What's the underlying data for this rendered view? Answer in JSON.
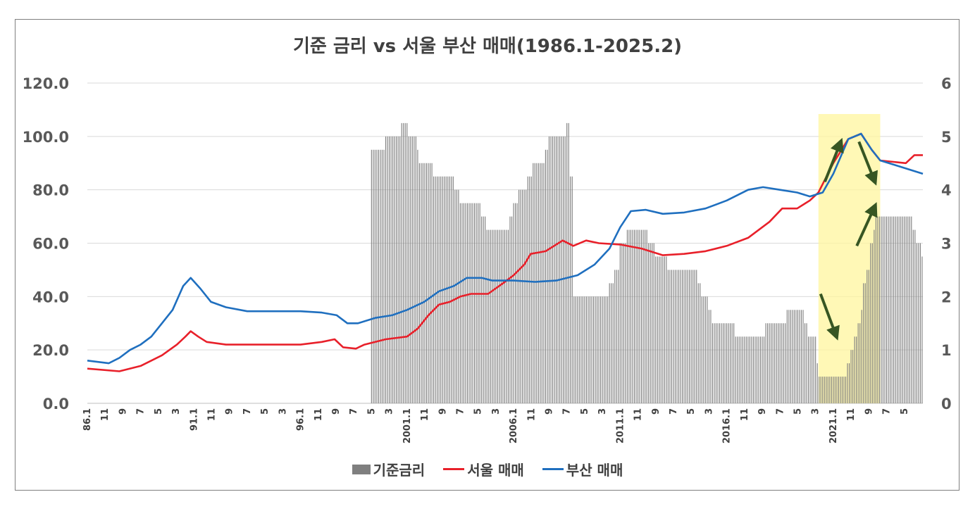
{
  "chart_data": {
    "type": "bar",
    "title": "기준 금리 vs 서울 부산 매매(1986.1-2025.2)",
    "colors": {
      "rate": "#7f7f7f",
      "seoul": "#e8202a",
      "busan": "#1f6fbf",
      "highlight": "#fff59d",
      "arrow": "#375623"
    },
    "left_axis": {
      "ticks": [
        "0.0",
        "20.0",
        "40.0",
        "60.0",
        "80.0",
        "100.0",
        "120.0"
      ],
      "ylim": [
        0,
        120
      ]
    },
    "right_axis": {
      "ticks": [
        "0",
        "1",
        "2",
        "3",
        "4",
        "5",
        "6"
      ],
      "ylim": [
        0,
        6
      ]
    },
    "x_tick_labels": [
      "86.1",
      "11",
      "9",
      "7",
      "5",
      "3",
      "91.1",
      "11",
      "9",
      "7",
      "5",
      "3",
      "96.1",
      "11",
      "9",
      "7",
      "5",
      "3",
      "2001.1",
      "11",
      "9",
      "7",
      "5",
      "3",
      "2006.1",
      "11",
      "9",
      "7",
      "5",
      "3",
      "2011.1",
      "11",
      "9",
      "7",
      "5",
      "3",
      "2016.1",
      "11",
      "9",
      "7",
      "5",
      "3",
      "2021.1",
      "11",
      "9",
      "7",
      "5"
    ],
    "grid": true,
    "legend_position": "bottom",
    "highlight_range": [
      "2020.3",
      "2023.2"
    ],
    "series": [
      {
        "name": "기준금리",
        "axis": "right",
        "type": "bar",
        "points": [
          [
            1999.33,
            4.75
          ],
          [
            2000.0,
            5.0
          ],
          [
            2000.75,
            5.25
          ],
          [
            2001.0,
            5.25
          ],
          [
            2001.08,
            5.0
          ],
          [
            2001.5,
            4.75
          ],
          [
            2001.58,
            4.5
          ],
          [
            2002.25,
            4.25
          ],
          [
            2003.0,
            4.25
          ],
          [
            2003.25,
            4.0
          ],
          [
            2003.5,
            3.75
          ],
          [
            2004.5,
            3.5
          ],
          [
            2004.75,
            3.25
          ],
          [
            2005.83,
            3.5
          ],
          [
            2006.0,
            3.75
          ],
          [
            2006.2,
            4.0
          ],
          [
            2006.6,
            4.25
          ],
          [
            2006.9,
            4.5
          ],
          [
            2007.5,
            4.75
          ],
          [
            2007.6,
            5.0
          ],
          [
            2008.0,
            5.0
          ],
          [
            2008.5,
            5.25
          ],
          [
            2008.6,
            4.25
          ],
          [
            2008.8,
            2.0
          ],
          [
            2010.5,
            2.25
          ],
          [
            2010.75,
            2.5
          ],
          [
            2010.95,
            3.0
          ],
          [
            2011.3,
            3.25
          ],
          [
            2012.0,
            3.25
          ],
          [
            2012.3,
            3.0
          ],
          [
            2012.6,
            2.75
          ],
          [
            2013.0,
            2.75
          ],
          [
            2013.2,
            2.5
          ],
          [
            2014.6,
            2.25
          ],
          [
            2014.8,
            2.0
          ],
          [
            2015.1,
            1.75
          ],
          [
            2015.3,
            1.5
          ],
          [
            2016.4,
            1.25
          ],
          [
            2017.6,
            1.25
          ],
          [
            2017.8,
            1.5
          ],
          [
            2018.7,
            1.5
          ],
          [
            2018.8,
            1.75
          ],
          [
            2019.5,
            1.75
          ],
          [
            2019.6,
            1.5
          ],
          [
            2019.8,
            1.25
          ],
          [
            2020.2,
            0.75
          ],
          [
            2020.3,
            0.5
          ],
          [
            2021.5,
            0.5
          ],
          [
            2021.6,
            0.75
          ],
          [
            2021.8,
            1.0
          ],
          [
            2022.0,
            1.25
          ],
          [
            2022.1,
            1.5
          ],
          [
            2022.3,
            1.75
          ],
          [
            2022.4,
            2.25
          ],
          [
            2022.55,
            2.5
          ],
          [
            2022.7,
            3.0
          ],
          [
            2022.9,
            3.25
          ],
          [
            2023.0,
            3.5
          ],
          [
            2024.6,
            3.5
          ],
          [
            2024.7,
            3.25
          ],
          [
            2024.85,
            3.0
          ],
          [
            2025.1,
            2.75
          ]
        ]
      },
      {
        "name": "서울 매매",
        "axis": "left",
        "type": "line",
        "points": [
          [
            1986.0,
            13
          ],
          [
            1987.5,
            12
          ],
          [
            1988.5,
            14
          ],
          [
            1989.5,
            18
          ],
          [
            1990.2,
            22
          ],
          [
            1990.6,
            25
          ],
          [
            1990.85,
            27
          ],
          [
            1991.2,
            25
          ],
          [
            1991.6,
            23
          ],
          [
            1992.5,
            22
          ],
          [
            1993,
            22
          ],
          [
            1995,
            22
          ],
          [
            1996,
            22
          ],
          [
            1997,
            23
          ],
          [
            1997.6,
            24
          ],
          [
            1998.0,
            21
          ],
          [
            1998.6,
            20.5
          ],
          [
            1999,
            22
          ],
          [
            2000,
            24
          ],
          [
            2001,
            25
          ],
          [
            2001.5,
            28
          ],
          [
            2002,
            33
          ],
          [
            2002.5,
            37
          ],
          [
            2003,
            38
          ],
          [
            2003.5,
            40
          ],
          [
            2004,
            41
          ],
          [
            2004.8,
            41
          ],
          [
            2005.5,
            45
          ],
          [
            2006.0,
            48
          ],
          [
            2006.5,
            52
          ],
          [
            2006.8,
            56
          ],
          [
            2007.5,
            57
          ],
          [
            2008.3,
            61
          ],
          [
            2008.8,
            59
          ],
          [
            2009.4,
            61
          ],
          [
            2010,
            60
          ],
          [
            2011,
            59.5
          ],
          [
            2012,
            58
          ],
          [
            2013,
            55.5
          ],
          [
            2014,
            56
          ],
          [
            2015,
            57
          ],
          [
            2016,
            59
          ],
          [
            2017,
            62
          ],
          [
            2018,
            68
          ],
          [
            2018.6,
            73
          ],
          [
            2019.3,
            73
          ],
          [
            2019.9,
            76
          ],
          [
            2020.3,
            79
          ],
          [
            2021,
            90
          ],
          [
            2021.7,
            99
          ],
          [
            2022.3,
            101
          ],
          [
            2022.8,
            95
          ],
          [
            2023.2,
            91
          ],
          [
            2024.4,
            90
          ],
          [
            2024.8,
            93
          ],
          [
            2025.2,
            93
          ]
        ]
      },
      {
        "name": "부산 매매",
        "axis": "left",
        "type": "line",
        "points": [
          [
            1986.0,
            16
          ],
          [
            1987.0,
            15
          ],
          [
            1987.5,
            17
          ],
          [
            1988.0,
            20
          ],
          [
            1988.5,
            22
          ],
          [
            1989.0,
            25
          ],
          [
            1989.5,
            30
          ],
          [
            1990.0,
            35
          ],
          [
            1990.5,
            44
          ],
          [
            1990.85,
            47
          ],
          [
            1991.3,
            43
          ],
          [
            1991.8,
            38
          ],
          [
            1992.5,
            36
          ],
          [
            1993.5,
            34.5
          ],
          [
            1995,
            34.5
          ],
          [
            1996,
            34.5
          ],
          [
            1997,
            34
          ],
          [
            1997.7,
            33
          ],
          [
            1998.2,
            30
          ],
          [
            1998.7,
            30
          ],
          [
            1999.5,
            32
          ],
          [
            2000.3,
            33
          ],
          [
            2001,
            35
          ],
          [
            2001.8,
            38
          ],
          [
            2002.5,
            42
          ],
          [
            2003.2,
            44
          ],
          [
            2003.8,
            47
          ],
          [
            2004.5,
            47
          ],
          [
            2005,
            46
          ],
          [
            2006,
            46
          ],
          [
            2007,
            45.5
          ],
          [
            2008,
            46
          ],
          [
            2009,
            48
          ],
          [
            2009.8,
            52
          ],
          [
            2010.5,
            58
          ],
          [
            2011.0,
            66
          ],
          [
            2011.5,
            72
          ],
          [
            2012.2,
            72.5
          ],
          [
            2013,
            71
          ],
          [
            2014,
            71.5
          ],
          [
            2015,
            73
          ],
          [
            2016,
            76
          ],
          [
            2017,
            80
          ],
          [
            2017.7,
            81
          ],
          [
            2018.5,
            80
          ],
          [
            2019.3,
            79
          ],
          [
            2019.9,
            77.5
          ],
          [
            2020.5,
            79
          ],
          [
            2021,
            86
          ],
          [
            2021.7,
            99
          ],
          [
            2022.3,
            101
          ],
          [
            2022.8,
            95
          ],
          [
            2023.2,
            91
          ],
          [
            2024,
            89
          ],
          [
            2025.2,
            86
          ]
        ]
      }
    ]
  },
  "legend": {
    "rate": "기준금리",
    "seoul": "서울 매매",
    "busan": "부산 매매"
  }
}
